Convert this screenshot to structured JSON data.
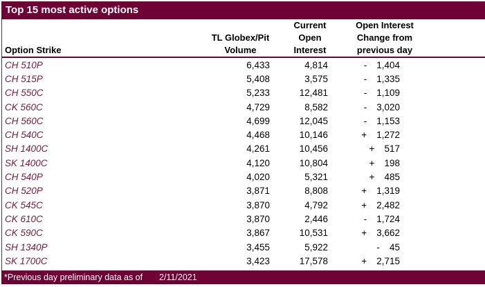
{
  "title": "Top 15 most active options",
  "footer": {
    "note": "*Previous day preliminary data as of",
    "date": "2/11/2021"
  },
  "colors": {
    "maroon": "#6F0234",
    "strike_text": "#74203C",
    "left_border": "#3F3F3F",
    "text": "#000000",
    "title_text": "#FFFFFF",
    "page_bg": "#FFFFFF"
  },
  "chart_data": {
    "type": "table",
    "title": "Top 15 most active options",
    "column_headers": {
      "strike": [
        "Option Strike"
      ],
      "volume": [
        "TL Globex/Pit",
        "Volume"
      ],
      "open_interest": [
        "Current",
        "Open",
        "Interest"
      ],
      "change": [
        "Open Interest",
        "Change from",
        "previous day"
      ]
    },
    "rows": [
      {
        "strike": "CH 510P",
        "volume": "6,433",
        "open_interest": "4,814",
        "change_sign": "-",
        "change_value": "1,404"
      },
      {
        "strike": "CH 515P",
        "volume": "5,408",
        "open_interest": "3,575",
        "change_sign": "-",
        "change_value": "1,335"
      },
      {
        "strike": "CH 550C",
        "volume": "5,233",
        "open_interest": "12,481",
        "change_sign": "-",
        "change_value": "1,109"
      },
      {
        "strike": "CK 560C",
        "volume": "4,729",
        "open_interest": "8,582",
        "change_sign": "-",
        "change_value": "3,020"
      },
      {
        "strike": "CH 560C",
        "volume": "4,699",
        "open_interest": "12,045",
        "change_sign": "-",
        "change_value": "1,153"
      },
      {
        "strike": "CH 540C",
        "volume": "4,468",
        "open_interest": "10,146",
        "change_sign": "+",
        "change_value": "1,272"
      },
      {
        "strike": "SH 1400C",
        "volume": "4,261",
        "open_interest": "10,456",
        "change_sign": "+",
        "change_value": "517"
      },
      {
        "strike": "SK 1400C",
        "volume": "4,120",
        "open_interest": "10,804",
        "change_sign": "+",
        "change_value": "198"
      },
      {
        "strike": "CH 540P",
        "volume": "4,020",
        "open_interest": "5,321",
        "change_sign": "+",
        "change_value": "485"
      },
      {
        "strike": "CH 520P",
        "volume": "3,871",
        "open_interest": "8,808",
        "change_sign": "+",
        "change_value": "1,319"
      },
      {
        "strike": "CK 545C",
        "volume": "3,870",
        "open_interest": "4,792",
        "change_sign": "+",
        "change_value": "2,482"
      },
      {
        "strike": "CK 610C",
        "volume": "3,870",
        "open_interest": "2,446",
        "change_sign": "-",
        "change_value": "1,724"
      },
      {
        "strike": "CK 590C",
        "volume": "3,867",
        "open_interest": "10,531",
        "change_sign": "+",
        "change_value": "3,662"
      },
      {
        "strike": "SH 1340P",
        "volume": "3,455",
        "open_interest": "5,922",
        "change_sign": "-",
        "change_value": "45"
      },
      {
        "strike": "SK 1700C",
        "volume": "3,423",
        "open_interest": "17,578",
        "change_sign": "+",
        "change_value": "2,715"
      }
    ]
  }
}
